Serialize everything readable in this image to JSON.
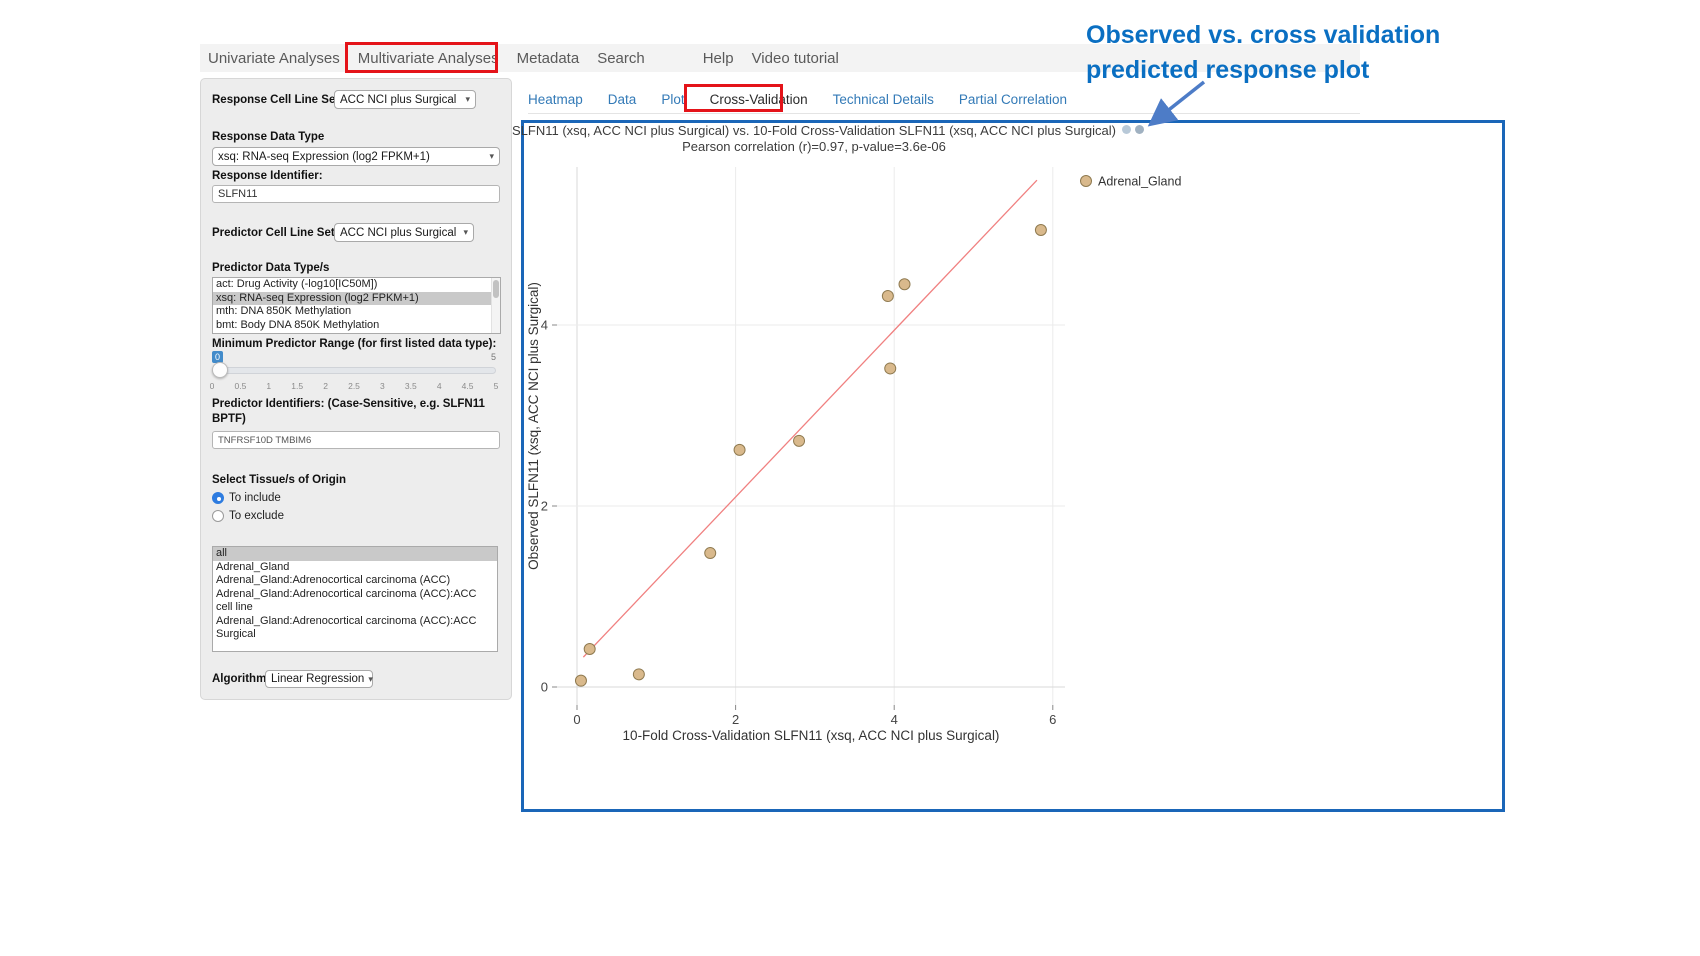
{
  "nav": {
    "items": [
      {
        "label": "Univariate Analyses"
      },
      {
        "label": "Multivariate Analyses",
        "highlighted": true
      },
      {
        "label": "Metadata"
      },
      {
        "label": "Search"
      },
      {
        "label": "Help"
      },
      {
        "label": "Video tutorial"
      }
    ]
  },
  "icons": {
    "select_caret": "▾"
  },
  "sidebar": {
    "response_cell_line_set": {
      "label": "Response Cell Line Set",
      "value": "ACC NCI plus Surgical"
    },
    "response_data_type": {
      "label": "Response Data Type",
      "value": "xsq: RNA-seq Expression (log2 FPKM+1)"
    },
    "response_identifier": {
      "label": "Response Identifier:",
      "value": "SLFN11"
    },
    "predictor_cell_line_set": {
      "label": "Predictor Cell Line Set",
      "value": "ACC NCI plus Surgical"
    },
    "predictor_data_types": {
      "label": "Predictor Data Type/s",
      "options": [
        "act: Drug Activity (-log10[IC50M])",
        "xsq: RNA-seq Expression (log2 FPKM+1)",
        "mth: DNA 850K Methylation",
        "bmt: Body DNA 850K Methylation"
      ],
      "selected_index": 1
    },
    "min_predictor_range": {
      "label": "Minimum Predictor Range (for first listed data type):",
      "value": "0",
      "max": "5",
      "ticks": [
        "0",
        "0.5",
        "1",
        "1.5",
        "2",
        "2.5",
        "3",
        "3.5",
        "4",
        "4.5",
        "5"
      ]
    },
    "predictor_identifiers": {
      "label": "Predictor Identifiers: (Case-Sensitive, e.g. SLFN11 BPTF)",
      "value": "TNFRSF10D TMBIM6"
    },
    "tissue_origin": {
      "label": "Select Tissue/s of Origin",
      "options": [
        {
          "label": "To include",
          "selected": true
        },
        {
          "label": "To exclude",
          "selected": false
        }
      ]
    },
    "tissue_list": {
      "options": [
        "all",
        "Adrenal_Gland",
        "Adrenal_Gland:Adrenocortical carcinoma (ACC)",
        "Adrenal_Gland:Adrenocortical carcinoma (ACC):ACC cell line",
        "Adrenal_Gland:Adrenocortical carcinoma (ACC):ACC Surgical"
      ],
      "selected_index": 0
    },
    "algorithm": {
      "label": "Algorithm",
      "value": "Linear Regression"
    }
  },
  "tabs": {
    "items": [
      "Heatmap",
      "Data",
      "Plot",
      "Cross-Validation",
      "Technical Details",
      "Partial Correlation"
    ],
    "active": "Cross-Validation"
  },
  "annotation": {
    "line1": "Observed vs. cross validation",
    "line2": "predicted response plot",
    "text_color": "#0a6fc2",
    "highlight_color": "#e41319",
    "panel_border_color": "#1a66b8"
  },
  "chart_data": {
    "type": "scatter",
    "title": "SLFN11 (xsq, ACC NCI plus Surgical) vs. 10-Fold Cross-Validation SLFN11 (xsq, ACC NCI plus Surgical)",
    "subtitle": "Pearson correlation (r)=0.97, p-value=3.6e-06",
    "xlabel": "10-Fold Cross-Validation SLFN11 (xsq, ACC NCI plus Surgical)",
    "ylabel": "Observed SLFN11 (xsq, ACC NCI plus Surgical)",
    "xlim": [
      -0.25,
      6.15
    ],
    "ylim": [
      -0.2,
      5.75
    ],
    "xticks": [
      0,
      2,
      4,
      6
    ],
    "yticks": [
      0,
      2,
      4
    ],
    "grid": true,
    "legend_position": "top-right",
    "legend": [
      {
        "label": "Adrenal_Gland",
        "color": "#d9b98c"
      }
    ],
    "point_color": "#d9b98c",
    "point_stroke": "#8f7a50",
    "points": [
      [
        0.05,
        0.07
      ],
      [
        0.16,
        0.42
      ],
      [
        0.78,
        0.14
      ],
      [
        1.68,
        1.48
      ],
      [
        2.05,
        2.62
      ],
      [
        2.8,
        2.72
      ],
      [
        3.95,
        3.52
      ],
      [
        3.92,
        4.32
      ],
      [
        4.13,
        4.45
      ],
      [
        5.85,
        5.05
      ]
    ],
    "fit_line": {
      "x1": 0.08,
      "y1": 0.33,
      "x2": 5.8,
      "y2": 5.6,
      "color": "#f08080"
    }
  }
}
